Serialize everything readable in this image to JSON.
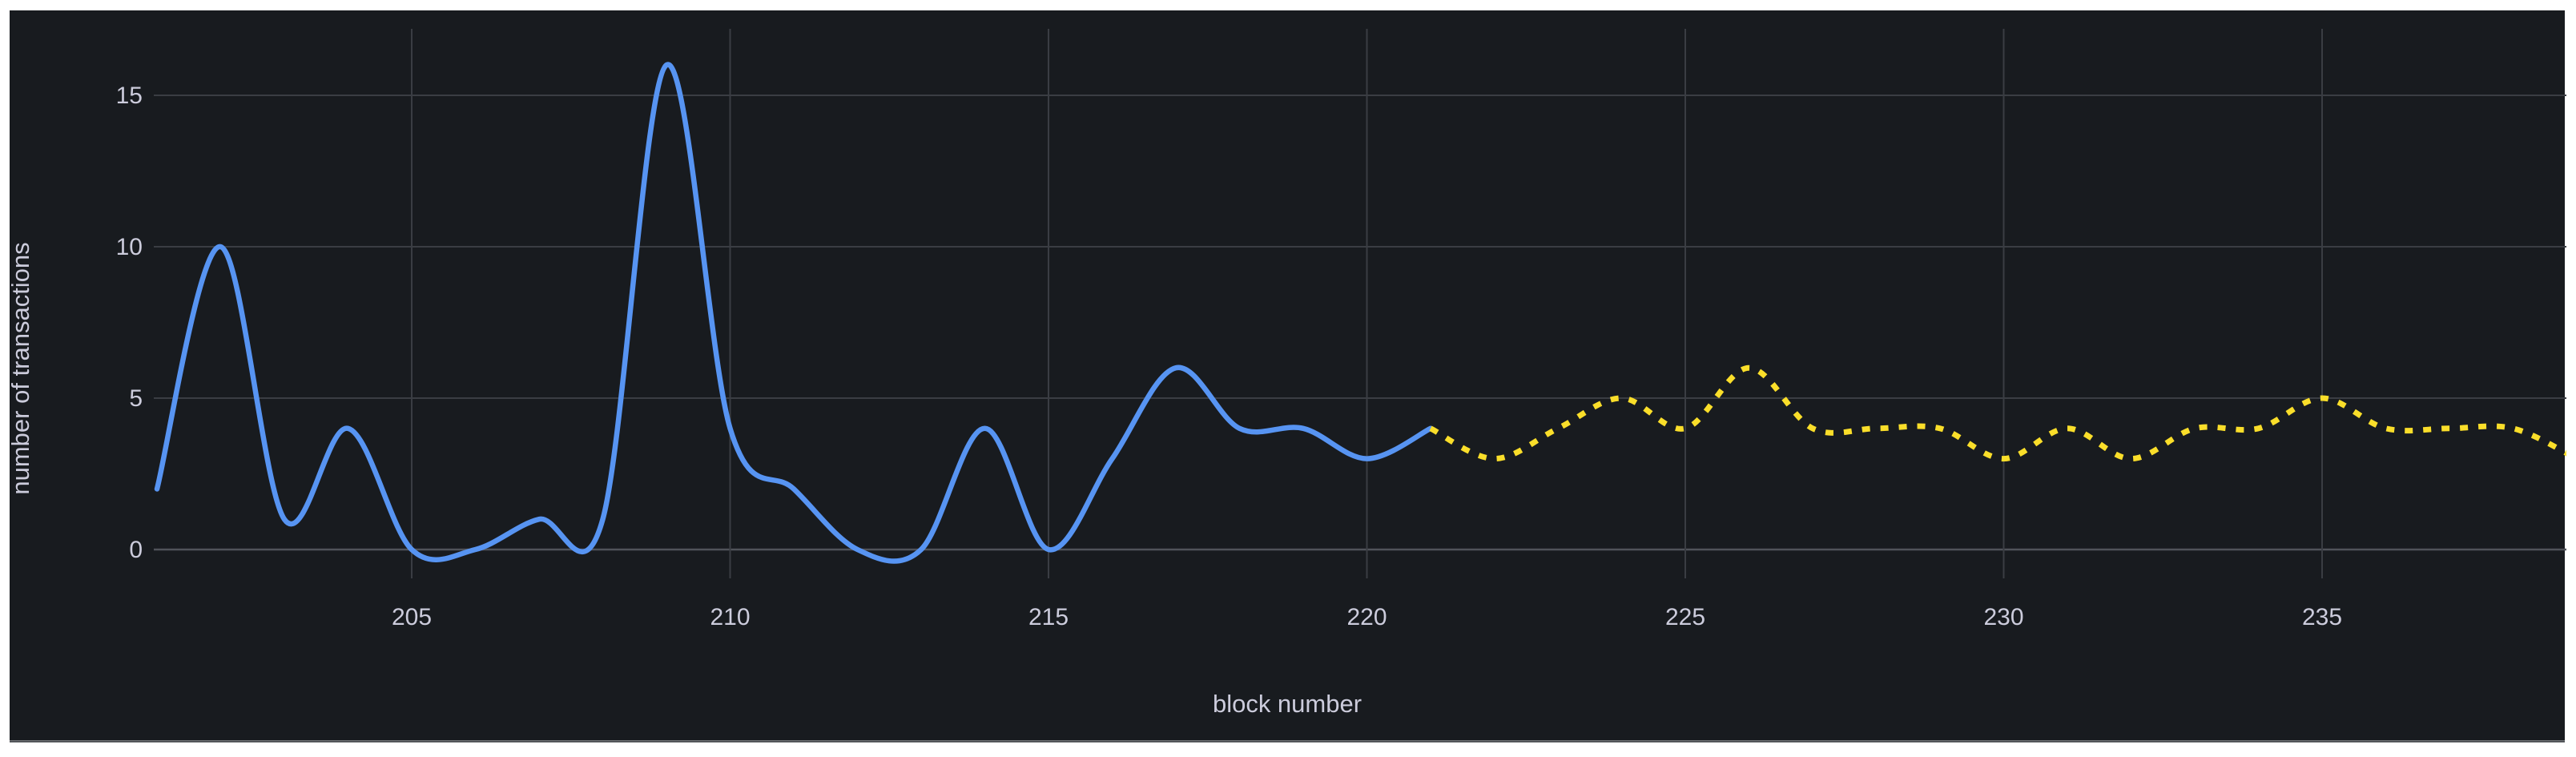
{
  "page": {
    "background": "#ffffff"
  },
  "panel": {
    "background": "#181b1f",
    "border_bottom_color": "#45484d"
  },
  "chart_data": {
    "type": "line",
    "title": "",
    "xlabel": "block number",
    "ylabel": "number of transactions",
    "x_ticks": [
      205,
      210,
      215,
      220,
      225,
      230,
      235
    ],
    "y_ticks": [
      0,
      5,
      10,
      15
    ],
    "xlim": [
      200.95,
      238.85
    ],
    "ylim": [
      -0.95,
      17.1
    ],
    "grid": true,
    "legend": "none",
    "colors": {
      "solid_line": "#5794f2",
      "dashed_line": "#fade2a",
      "gridline": "#3a3d43",
      "zero_axis_line": "#50535a",
      "tick_text": "#ccccdc"
    },
    "series": [
      {
        "name": "solid-line",
        "style": "solid",
        "color": "#5794f2",
        "x": [
          201,
          202,
          203,
          204,
          205,
          206,
          207,
          208,
          209,
          210,
          211,
          212,
          213,
          214,
          215,
          216,
          217,
          218,
          219,
          220,
          221
        ],
        "values": [
          2,
          10,
          1,
          4,
          0,
          0,
          1,
          1,
          16,
          4,
          2,
          0,
          0,
          4,
          0,
          3,
          6,
          4,
          4,
          3,
          4
        ]
      },
      {
        "name": "dashed-line",
        "style": "dashed",
        "color": "#fade2a",
        "x": [
          221,
          222,
          223,
          224,
          225,
          226,
          227,
          228,
          229,
          230,
          231,
          232,
          233,
          234,
          235,
          236,
          237,
          238,
          239
        ],
        "values": [
          4,
          3,
          4,
          5,
          4,
          6,
          4,
          4,
          4,
          3,
          4,
          3,
          4,
          4,
          5,
          4,
          4,
          4,
          3
        ]
      }
    ]
  }
}
